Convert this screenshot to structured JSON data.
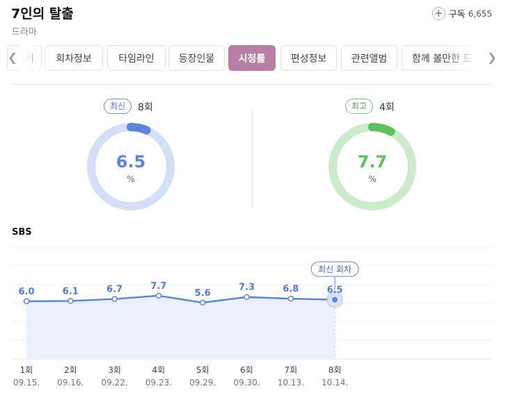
{
  "header": {
    "title": "7인의 탈출",
    "genre": "드라마",
    "subscribe_label": "구독",
    "subscribe_count": "6,655"
  },
  "tabs": [
    {
      "label": "기",
      "active": false
    },
    {
      "label": "회차정보",
      "active": false
    },
    {
      "label": "타임라인",
      "active": false
    },
    {
      "label": "등장인물",
      "active": false
    },
    {
      "label": "시청률",
      "active": true
    },
    {
      "label": "편성정보",
      "active": false
    },
    {
      "label": "관련앨범",
      "active": false
    },
    {
      "label": "함께 볼만한 드",
      "active": false
    }
  ],
  "summary": {
    "latest": {
      "label": "최신",
      "episode": "8회",
      "value": "6.5",
      "unit": "%",
      "ratio": 0.065,
      "color": "#5b86e0",
      "track": "#d4dff8"
    },
    "best": {
      "label": "최고",
      "episode": "4회",
      "value": "7.7",
      "unit": "%",
      "ratio": 0.077,
      "color": "#5cc15e",
      "track": "#cbeccb"
    }
  },
  "network": "SBS",
  "chart_data": {
    "type": "line",
    "categories": [
      "1회",
      "2회",
      "3회",
      "4회",
      "5회",
      "6회",
      "7회",
      "8회"
    ],
    "dates": [
      "09.15.",
      "09.16.",
      "09.22.",
      "09.23.",
      "09.29.",
      "09.30.",
      "10.13.",
      "10.14."
    ],
    "values": [
      6.0,
      6.1,
      6.7,
      7.7,
      5.6,
      7.3,
      6.8,
      6.5
    ],
    "value_labels": [
      "6.0",
      "6.1",
      "6.7",
      "7.7",
      "5.6",
      "7.3",
      "6.8",
      "6.5"
    ],
    "latest_annotation": "최신 회차",
    "line_color": "#5b86e0",
    "grid": true
  }
}
